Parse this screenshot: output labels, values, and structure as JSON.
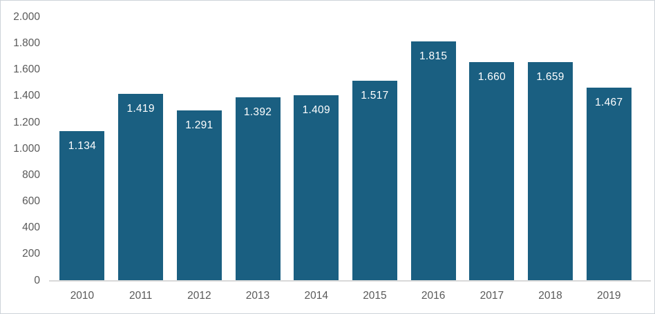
{
  "chart_data": {
    "type": "bar",
    "categories": [
      "2010",
      "2011",
      "2012",
      "2013",
      "2014",
      "2015",
      "2016",
      "2017",
      "2018",
      "2019"
    ],
    "values": [
      1134,
      1419,
      1291,
      1392,
      1409,
      1517,
      1815,
      1660,
      1659,
      1467
    ],
    "value_labels": [
      "1.134",
      "1.419",
      "1.291",
      "1.392",
      "1.409",
      "1.517",
      "1.815",
      "1.660",
      "1.659",
      "1.467"
    ],
    "y_axis": {
      "min": 0,
      "max": 2000,
      "tick_interval": 200,
      "tick_labels": [
        "0",
        "200",
        "400",
        "600",
        "800",
        "1.000",
        "1.200",
        "1.400",
        "1.600",
        "1.800",
        "2.000"
      ]
    },
    "grid": false,
    "legend": "none",
    "colors": {
      "bar": "#1a5f81",
      "data_label": "#ffffff",
      "axis_text": "#595959",
      "axis_line": "#d9d9d9",
      "background": "#ffffff",
      "border": "#cdd3d9"
    }
  }
}
